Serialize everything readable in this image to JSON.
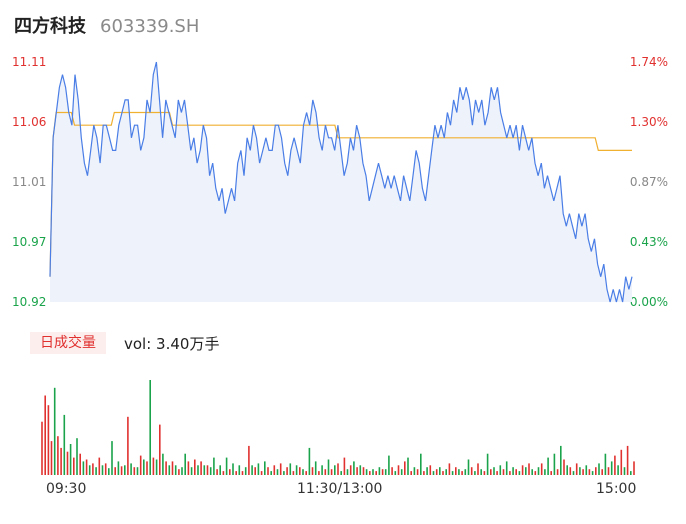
{
  "header": {
    "name": "四方科技",
    "code": "603339.SH"
  },
  "colors": {
    "up": "#e0312f",
    "down": "#1aa34a",
    "neutral": "#888888",
    "price_line": "#4a7ee6",
    "avg_line": "#f0b030",
    "fill": "#eef2fb"
  },
  "price_axis": {
    "labels": [
      "11.11",
      "11.06",
      "11.01",
      "10.97",
      "10.92"
    ],
    "label_colors": [
      "#e0312f",
      "#e0312f",
      "#888888",
      "#1aa34a",
      "#1aa34a"
    ],
    "percent_labels": [
      "1.74%",
      "1.30%",
      "0.87%",
      "0.43%",
      "0.00%"
    ],
    "percent_colors": [
      "#e0312f",
      "#e0312f",
      "#888888",
      "#1aa34a",
      "#1aa34a"
    ]
  },
  "volume_panel": {
    "tag": "日成交量",
    "vol_text": "vol: 3.40万手"
  },
  "time_axis": {
    "labels": [
      "09:30",
      "11:30/13:00",
      "15:00"
    ]
  },
  "chart_data": {
    "type": "line",
    "title": "",
    "xlabel": "",
    "ylabel": "",
    "ylim": [
      10.92,
      11.11
    ],
    "x_ticks": [
      "09:30",
      "11:30/13:00",
      "15:00"
    ],
    "series": [
      {
        "name": "",
        "values": [
          10.94,
          11.05,
          11.07,
          11.09,
          11.1,
          11.09,
          11.07,
          11.06,
          11.1,
          11.08,
          11.05,
          11.03,
          11.02,
          11.04,
          11.06,
          11.05,
          11.03,
          11.06,
          11.06,
          11.05,
          11.04,
          11.04,
          11.06,
          11.07,
          11.08,
          11.08,
          11.05,
          11.06,
          11.06,
          11.04,
          11.05,
          11.08,
          11.07,
          11.1,
          11.11,
          11.08,
          11.05,
          11.08,
          11.07,
          11.06,
          11.05,
          11.08,
          11.07,
          11.08,
          11.06,
          11.04,
          11.05,
          11.03,
          11.04,
          11.06,
          11.05,
          11.02,
          11.03,
          11.01,
          11.0,
          11.01,
          10.99,
          11.0,
          11.01,
          11.0,
          11.03,
          11.04,
          11.02,
          11.05,
          11.04,
          11.06,
          11.05,
          11.03,
          11.04,
          11.05,
          11.04,
          11.04,
          11.06,
          11.06,
          11.05,
          11.03,
          11.02,
          11.04,
          11.05,
          11.04,
          11.03,
          11.06,
          11.07,
          11.06,
          11.08,
          11.07,
          11.05,
          11.04,
          11.06,
          11.05,
          11.05,
          11.04,
          11.06,
          11.04,
          11.02,
          11.03,
          11.05,
          11.04,
          11.06,
          11.05,
          11.03,
          11.02,
          11.0,
          11.01,
          11.02,
          11.03,
          11.02,
          11.01,
          11.02,
          11.01,
          11.02,
          11.01,
          11.0,
          11.02,
          11.01,
          11.0,
          11.02,
          11.04,
          11.03,
          11.01,
          11.0,
          11.02,
          11.04,
          11.06,
          11.05,
          11.06,
          11.05,
          11.07,
          11.06,
          11.08,
          11.07,
          11.09,
          11.08,
          11.09,
          11.08,
          11.06,
          11.08,
          11.07,
          11.08,
          11.06,
          11.07,
          11.09,
          11.08,
          11.09,
          11.07,
          11.06,
          11.05,
          11.06,
          11.05,
          11.06,
          11.04,
          11.06,
          11.05,
          11.04,
          11.05,
          11.03,
          11.02,
          11.03,
          11.01,
          11.02,
          11.01,
          11.0,
          11.01,
          11.02,
          10.99,
          10.98,
          10.99,
          10.98,
          10.97,
          10.99,
          10.98,
          10.99,
          10.97,
          10.96,
          10.97,
          10.95,
          10.94,
          10.95,
          10.93,
          10.92,
          10.93,
          10.92,
          10.93,
          10.92,
          10.94,
          10.93,
          10.94
        ]
      },
      {
        "name": "",
        "values": [
          10.94,
          11.05,
          11.07,
          11.07,
          11.07,
          11.07,
          11.07,
          11.07,
          11.06,
          11.06,
          11.06,
          11.06,
          11.06,
          11.06,
          11.06,
          11.06,
          11.06,
          11.06,
          11.06,
          11.06,
          11.06,
          11.07,
          11.07,
          11.07,
          11.07,
          11.07,
          11.07,
          11.07,
          11.07,
          11.07,
          11.07,
          11.07,
          11.07,
          11.07,
          11.07,
          11.07,
          11.07,
          11.07,
          11.07,
          11.07,
          11.06,
          11.06,
          11.06,
          11.06,
          11.06,
          11.06,
          11.06,
          11.06,
          11.06,
          11.06,
          11.06,
          11.06,
          11.06,
          11.06,
          11.06,
          11.06,
          11.06,
          11.06,
          11.06,
          11.06,
          11.06,
          11.06,
          11.06,
          11.06,
          11.06,
          11.06,
          11.06,
          11.06,
          11.06,
          11.06,
          11.06,
          11.06,
          11.06,
          11.06,
          11.06,
          11.06,
          11.06,
          11.06,
          11.06,
          11.06,
          11.06,
          11.06,
          11.06,
          11.06,
          11.06,
          11.06,
          11.06,
          11.06,
          11.06,
          11.06,
          11.06,
          11.06,
          11.06,
          11.06,
          11.05,
          11.05,
          11.05,
          11.05,
          11.05,
          11.05,
          11.05,
          11.05,
          11.05,
          11.05,
          11.05,
          11.05,
          11.05,
          11.05,
          11.05,
          11.05,
          11.05,
          11.05,
          11.05,
          11.05,
          11.05,
          11.05,
          11.05,
          11.05,
          11.05,
          11.05,
          11.05,
          11.05,
          11.05,
          11.05,
          11.05,
          11.05,
          11.05,
          11.05,
          11.05,
          11.05,
          11.05,
          11.05,
          11.05,
          11.05,
          11.05,
          11.05,
          11.05,
          11.05,
          11.05,
          11.05,
          11.05,
          11.05,
          11.05,
          11.05,
          11.05,
          11.05,
          11.05,
          11.05,
          11.05,
          11.05,
          11.05,
          11.05,
          11.05,
          11.05,
          11.05,
          11.05,
          11.05,
          11.05,
          11.05,
          11.05,
          11.05,
          11.05,
          11.05,
          11.05,
          11.05,
          11.05,
          11.05,
          11.05,
          11.05,
          11.05,
          11.05,
          11.05,
          11.05,
          11.05,
          11.05,
          11.05,
          11.05,
          11.05,
          11.05,
          11.04,
          11.04,
          11.04,
          11.04,
          11.04,
          11.04,
          11.04,
          11.04,
          11.04,
          11.04,
          11.04,
          11.04
        ]
      }
    ],
    "volume": {
      "values": [
        55,
        82,
        72,
        35,
        90,
        40,
        28,
        62,
        24,
        32,
        18,
        38,
        22,
        14,
        16,
        10,
        12,
        8,
        18,
        10,
        12,
        7,
        35,
        8,
        14,
        9,
        10,
        60,
        12,
        8,
        8,
        20,
        16,
        14,
        98,
        18,
        16,
        52,
        22,
        14,
        10,
        14,
        10,
        6,
        8,
        22,
        14,
        8,
        16,
        10,
        14,
        10,
        10,
        8,
        18,
        6,
        10,
        4,
        18,
        6,
        12,
        4,
        10,
        4,
        8,
        30,
        10,
        8,
        12,
        4,
        14,
        8,
        4,
        10,
        6,
        12,
        4,
        8,
        12,
        4,
        10,
        8,
        6,
        4,
        28,
        8,
        14,
        4,
        10,
        6,
        16,
        6,
        10,
        12,
        4,
        18,
        6,
        10,
        14,
        8,
        10,
        8,
        6,
        4,
        6,
        4,
        8,
        6,
        6,
        20,
        8,
        4,
        10,
        6,
        14,
        18,
        4,
        8,
        6,
        22,
        4,
        8,
        10,
        4,
        6,
        8,
        4,
        6,
        12,
        4,
        8,
        6,
        4,
        6,
        16,
        8,
        4,
        12,
        6,
        4,
        22,
        6,
        8,
        4,
        10,
        6,
        14,
        4,
        8,
        6,
        4,
        10,
        8,
        12,
        6,
        4,
        8,
        12,
        6,
        18,
        4,
        22,
        6,
        30,
        16,
        10,
        8,
        4,
        12,
        8,
        6,
        10,
        6,
        4,
        8,
        12,
        6,
        22,
        8,
        14,
        20,
        10,
        26,
        8,
        30,
        4,
        14
      ],
      "up": [
        true,
        true,
        true,
        true,
        false,
        true,
        true,
        false,
        true,
        false,
        true,
        false,
        true,
        false,
        true,
        false,
        true,
        false,
        true,
        false,
        true,
        false,
        false,
        true,
        false,
        true,
        false,
        true,
        false,
        true,
        false,
        true,
        false,
        true,
        false,
        true,
        false,
        true,
        false,
        true,
        false,
        true,
        false,
        true,
        false,
        false,
        true,
        false,
        true,
        false,
        true,
        false,
        true,
        false,
        false,
        true,
        false,
        true,
        false,
        true,
        false,
        true,
        false,
        true,
        false,
        true,
        false,
        true,
        false,
        true,
        false,
        true,
        false,
        true,
        false,
        true,
        false,
        true,
        false,
        true,
        false,
        true,
        false,
        true,
        false,
        true,
        false,
        true,
        false,
        true,
        false,
        true,
        false,
        true,
        false,
        true,
        false,
        true,
        false,
        true,
        false,
        true,
        false,
        true,
        false,
        true,
        false,
        true,
        false,
        false,
        true,
        false,
        true,
        false,
        true,
        false,
        true,
        false,
        true,
        false,
        true,
        false,
        true,
        false,
        true,
        false,
        true,
        false,
        true,
        false,
        true,
        false,
        true,
        false,
        false,
        true,
        false,
        true,
        false,
        true,
        false,
        true,
        false,
        true,
        false,
        true,
        false,
        true,
        false,
        true,
        false,
        true,
        false,
        true,
        false,
        true,
        false,
        true,
        false,
        false,
        true,
        false,
        true,
        false,
        true,
        false,
        true,
        false,
        true,
        false,
        true,
        false,
        true,
        false,
        true,
        false,
        true,
        false,
        true,
        false,
        true,
        false,
        true,
        false,
        true,
        false,
        true,
        false,
        true,
        false,
        true,
        false,
        true
      ]
    }
  }
}
